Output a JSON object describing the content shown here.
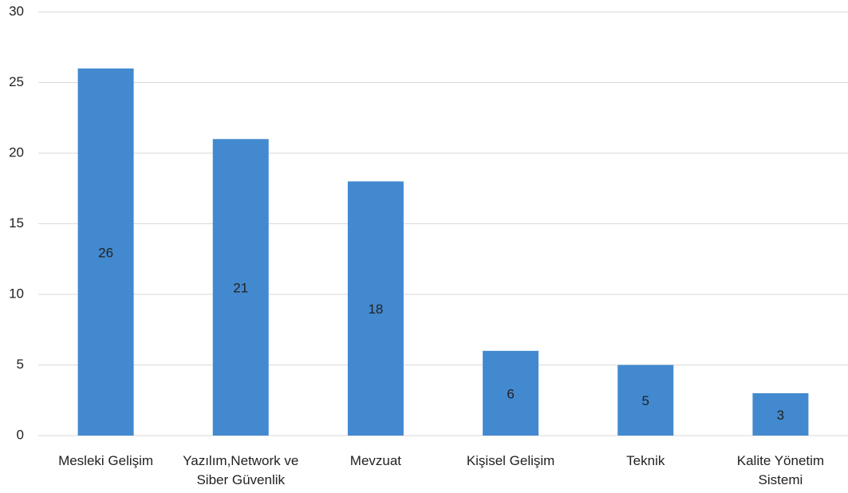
{
  "chart_data": {
    "type": "bar",
    "categories": [
      "Mesleki Gelişim",
      "Yazılım,Network ve Siber Güvenlik",
      "Mevzuat",
      "Kişisel Gelişim",
      "Teknik",
      "Kalite Yönetim Sistemi"
    ],
    "values": [
      26,
      21,
      18,
      6,
      5,
      3
    ],
    "color": "#4389cf",
    "ylim": [
      0,
      30
    ],
    "yticks": [
      0,
      5,
      10,
      15,
      20,
      25,
      30
    ],
    "grid": true
  }
}
